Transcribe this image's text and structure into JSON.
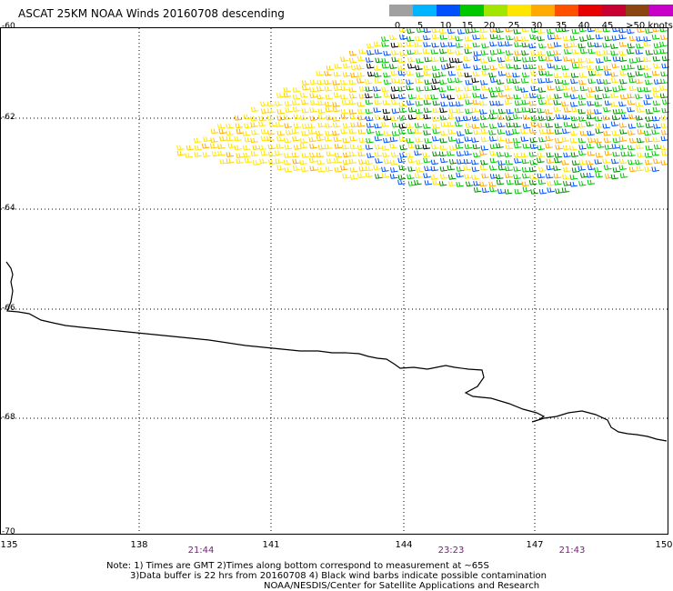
{
  "title": "ASCAT 25KM NOAA Winds 20160708 descending",
  "legend": {
    "colors": [
      "#a0a0a0",
      "#00b4ff",
      "#0050ff",
      "#00c800",
      "#a0e600",
      "#ffe600",
      "#ffaa00",
      "#ff5000",
      "#e60000",
      "#c80032",
      "#8b4513",
      "#c800c8",
      "#6400c8"
    ],
    "labels": [
      "0",
      "5",
      "10",
      "15",
      "20",
      "25",
      "30",
      "35",
      "40",
      "45",
      ">50 knots"
    ]
  },
  "axes": {
    "latitude_labels": [
      "-60",
      "-62",
      "-64",
      "-66",
      "-68",
      "-70"
    ],
    "longitude_labels": [
      "135",
      "138",
      "141",
      "144",
      "147",
      "150"
    ]
  },
  "pass_times": [
    "21:44",
    "23:23",
    "21:43"
  ],
  "notes": {
    "line1": "Note: 1) Times are GMT 2)Times along bottom correspond to measurement at ~65S",
    "line2": "3)Data buffer is 22 hrs from 20160708 4) Black wind barbs indicate possible contamination",
    "line3": "NOAA/NESDIS/Center for Satellite Applications and Research"
  },
  "map": {
    "barb_colors": [
      "#ffe600",
      "#ffd000",
      "#ffaa00",
      "#00c800",
      "#008c00",
      "#0050ff",
      "#000000"
    ],
    "coastline_color": "#000000",
    "grid": "dotted"
  }
}
